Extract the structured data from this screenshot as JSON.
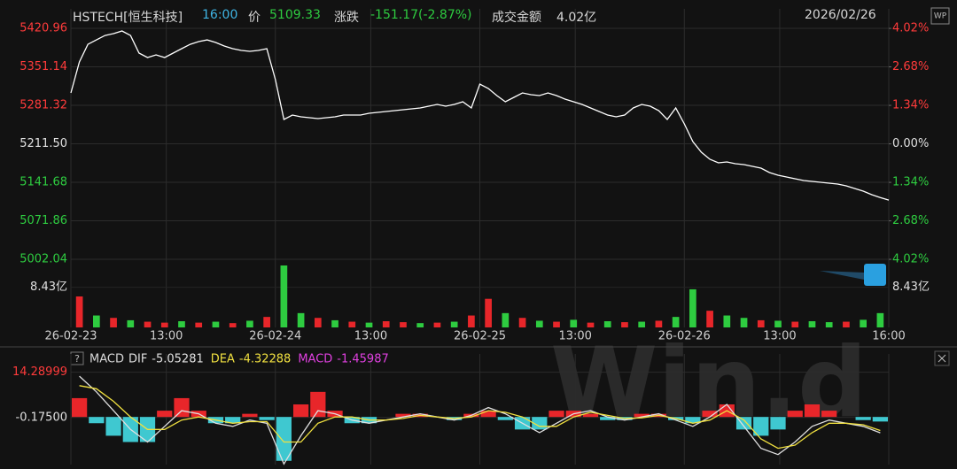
{
  "header": {
    "symbol": "HSTECH[恒生科技]",
    "time": "16:00",
    "price_label": "价",
    "change_label": "涨跌",
    "change": "-151.17(-2.87%)",
    "turnover_label": "成交金额",
    "turnover": "4.02亿",
    "date": "2026/02/26",
    "badge": "WP",
    "watermark": "Win.d"
  },
  "chart_data": [
    {
      "type": "line",
      "x": [
        0,
        1,
        2,
        3,
        4,
        5,
        6,
        7,
        8,
        9,
        10,
        11,
        12,
        13,
        14,
        15,
        16,
        17,
        18,
        19,
        20,
        21,
        22,
        23,
        24,
        25,
        26,
        27,
        28,
        29,
        30,
        31,
        32,
        33,
        34,
        35,
        36,
        37,
        38,
        39,
        40,
        41,
        42,
        43,
        44,
        45,
        46,
        47,
        48,
        49,
        50,
        51,
        52,
        53,
        54,
        55,
        56,
        57,
        58,
        59,
        60,
        61,
        62,
        63,
        64,
        65,
        66,
        67,
        68,
        69,
        70,
        71,
        72,
        73,
        74,
        75,
        76,
        77,
        78,
        79,
        80,
        81,
        82,
        83,
        84,
        85,
        86,
        87,
        88,
        89,
        90,
        91,
        92,
        93,
        94,
        95,
        96
      ],
      "series": [
        {
          "name": "HSTECH",
          "color": "#ffffff",
          "values": [
            5303.8,
            5360,
            5392,
            5400,
            5408,
            5411.4,
            5416.2,
            5408,
            5376,
            5368,
            5372.8,
            5368,
            5376,
            5384,
            5392,
            5396.9,
            5400,
            5395.3,
            5388.9,
            5384,
            5380.9,
            5379.3,
            5380.9,
            5384,
            5327.9,
            5255.6,
            5263.7,
            5260.5,
            5258.9,
            5257.2,
            5258.9,
            5260.5,
            5263.7,
            5263.7,
            5263.7,
            5266.9,
            5268.5,
            5270.1,
            5271.7,
            5273.3,
            5274.9,
            5276.5,
            5279.7,
            5282.9,
            5279.7,
            5282.9,
            5287.8,
            5276.5,
            5319.9,
            5311.8,
            5299,
            5287.8,
            5295.8,
            5303.8,
            5300.6,
            5299,
            5303.8,
            5299,
            5292.6,
            5287.8,
            5282.9,
            5276.5,
            5270.1,
            5263.7,
            5260.5,
            5263.7,
            5276.5,
            5282.9,
            5279.7,
            5271.7,
            5255.6,
            5276.5,
            5247.6,
            5215.5,
            5196.3,
            5183.4,
            5177,
            5178.6,
            5175.4,
            5173.8,
            5170.6,
            5167.4,
            5159.3,
            5154.5,
            5151.3,
            5148.1,
            5144.9,
            5143.3,
            5141.7,
            5140.1,
            5138.5,
            5135.3,
            5130.5,
            5125.6,
            5119.2,
            5114,
            5109.33
          ]
        }
      ],
      "xlim": [
        0,
        96
      ],
      "xticks": [
        {
          "value": 0,
          "label": "26-02-23"
        },
        {
          "value": 11.2,
          "label": "13:00"
        },
        {
          "value": 24,
          "label": "26-02-24"
        },
        {
          "value": 35.2,
          "label": "13:00"
        },
        {
          "value": 48,
          "label": "26-02-25"
        },
        {
          "value": 59.2,
          "label": "13:00"
        },
        {
          "value": 72,
          "label": "26-02-26"
        },
        {
          "value": 83.2,
          "label": "13:00"
        },
        {
          "value": 96,
          "label": "16:00"
        }
      ],
      "ylim": [
        4997.2,
        5456.3
      ],
      "yticks": [
        5420.96,
        5351.14,
        5281.32,
        {
          "value": 5211.5,
          "label": "5211.50"
        },
        5141.68,
        5071.86,
        5002.04
      ],
      "ytick_colors": [
        "#ff3b3b",
        "#ff3b3b",
        "#ff3b3b",
        "#e0e0e0",
        "#2ecc40",
        "#2ecc40",
        "#2ecc40"
      ],
      "y2lim": [
        -4.11,
        4.7
      ],
      "y2ticks": [
        {
          "value": 4.02,
          "label": "4.02%"
        },
        {
          "value": 2.68,
          "label": "2.68%"
        },
        {
          "value": 1.34,
          "label": "1.34%"
        },
        {
          "value": 0,
          "label": "0.00%"
        },
        {
          "value": -1.34,
          "label": "1.34%"
        },
        {
          "value": -2.68,
          "label": "2.68%"
        },
        {
          "value": -4.02,
          "label": "4.02%"
        }
      ],
      "y2tick_colors": [
        "#ff3b3b",
        "#ff3b3b",
        "#ff3b3b",
        "#e0e0e0",
        "#2ecc40",
        "#2ecc40",
        "#2ecc40"
      ],
      "grid": true,
      "volume": {
        "values": [
          6.5,
          2.5,
          2,
          1.5,
          1.2,
          1,
          1.3,
          1,
          1.2,
          0.9,
          1.4,
          2.2,
          13,
          3,
          2,
          1.5,
          1.2,
          1,
          1.3,
          1.1,
          0.9,
          1,
          1.2,
          2.5,
          6,
          3,
          2,
          1.4,
          1.2,
          1.6,
          1,
          1.3,
          1.1,
          1.2,
          1.4,
          2.2,
          8,
          3.5,
          2.5,
          2,
          1.5,
          1.4,
          1.2,
          1.3,
          1.1,
          1.2,
          1.6,
          3
        ],
        "colors": [
          "#e8262a",
          "#2ecc40",
          "#e8262a",
          "#2ecc40",
          "#e8262a",
          "#e8262a",
          "#2ecc40",
          "#e8262a",
          "#2ecc40",
          "#e8262a",
          "#2ecc40",
          "#e8262a",
          "#2ecc40",
          "#2ecc40",
          "#e8262a",
          "#2ecc40",
          "#e8262a",
          "#2ecc40",
          "#e8262a",
          "#e8262a",
          "#2ecc40",
          "#e8262a",
          "#2ecc40",
          "#e8262a",
          "#e8262a",
          "#2ecc40",
          "#e8262a",
          "#2ecc40",
          "#e8262a",
          "#2ecc40",
          "#e8262a",
          "#2ecc40",
          "#e8262a",
          "#2ecc40",
          "#e8262a",
          "#2ecc40",
          "#2ecc40",
          "#e8262a",
          "#2ecc40",
          "#2ecc40",
          "#e8262a",
          "#2ecc40",
          "#e8262a",
          "#2ecc40",
          "#2ecc40",
          "#e8262a",
          "#2ecc40",
          "#2ecc40"
        ],
        "vlim": [
          0,
          13
        ],
        "vticks": [
          {
            "value": 8.43,
            "label": "8.43亿"
          }
        ]
      }
    },
    {
      "type": "line",
      "title": "MACD",
      "series": [
        {
          "name": "DIF",
          "color": "#e0e0e0",
          "values": [
            13,
            8,
            2,
            -4,
            -8,
            -3,
            2,
            1,
            -2,
            -3,
            -1,
            -2,
            -15,
            -6,
            2,
            1,
            -1,
            -2,
            -1,
            0,
            1,
            0,
            -1,
            0.5,
            3,
            1,
            -2,
            -5,
            -2,
            1,
            2,
            0,
            -1,
            0,
            1,
            -1,
            -3,
            0,
            4,
            -3,
            -10,
            -12,
            -8,
            -3,
            -1,
            -2,
            -3,
            -5.05281
          ]
        },
        {
          "name": "DEA",
          "color": "#f0e040",
          "values": [
            10,
            9,
            5,
            0,
            -4,
            -4,
            -1,
            0,
            -1,
            -2,
            -1.5,
            -1.5,
            -8,
            -8,
            -2,
            0,
            0,
            -1,
            -1,
            -0.5,
            0.5,
            0,
            -0.5,
            0,
            2,
            1.5,
            0,
            -3,
            -3,
            0,
            1.5,
            0.5,
            -0.5,
            -0.3,
            0.5,
            -0.5,
            -2,
            -1,
            2,
            -1,
            -7,
            -10,
            -9,
            -5,
            -2,
            -2,
            -2.5,
            -4.32288
          ]
        },
        {
          "name": "MACD",
          "color": "#e8262a",
          "negative_color": "#3fc8d0",
          "style": "bar",
          "values": [
            6,
            -2,
            -6,
            -8,
            -8,
            2,
            6,
            2,
            -2,
            -2,
            1,
            -1,
            -14,
            4,
            8,
            2,
            -2,
            -2,
            0,
            1,
            1,
            0,
            -1,
            1,
            2,
            -1,
            -4,
            -4,
            2,
            2,
            1,
            -1,
            -1,
            1,
            1,
            -1,
            -2,
            2,
            4,
            -4,
            -6,
            -4,
            2,
            4,
            2,
            0,
            -1,
            -1.45987
          ]
        }
      ],
      "legend_colors": [
        "#e0e0e0",
        "#f0e040",
        "#e040e0"
      ],
      "ylim": [
        -15.2,
        20.1
      ],
      "yticks": [
        14.28999,
        {
          "value": -0.175,
          "label": "-0.17500"
        }
      ],
      "ytick_colors": [
        "#ff3b3b",
        "#e0e0e0"
      ]
    }
  ]
}
